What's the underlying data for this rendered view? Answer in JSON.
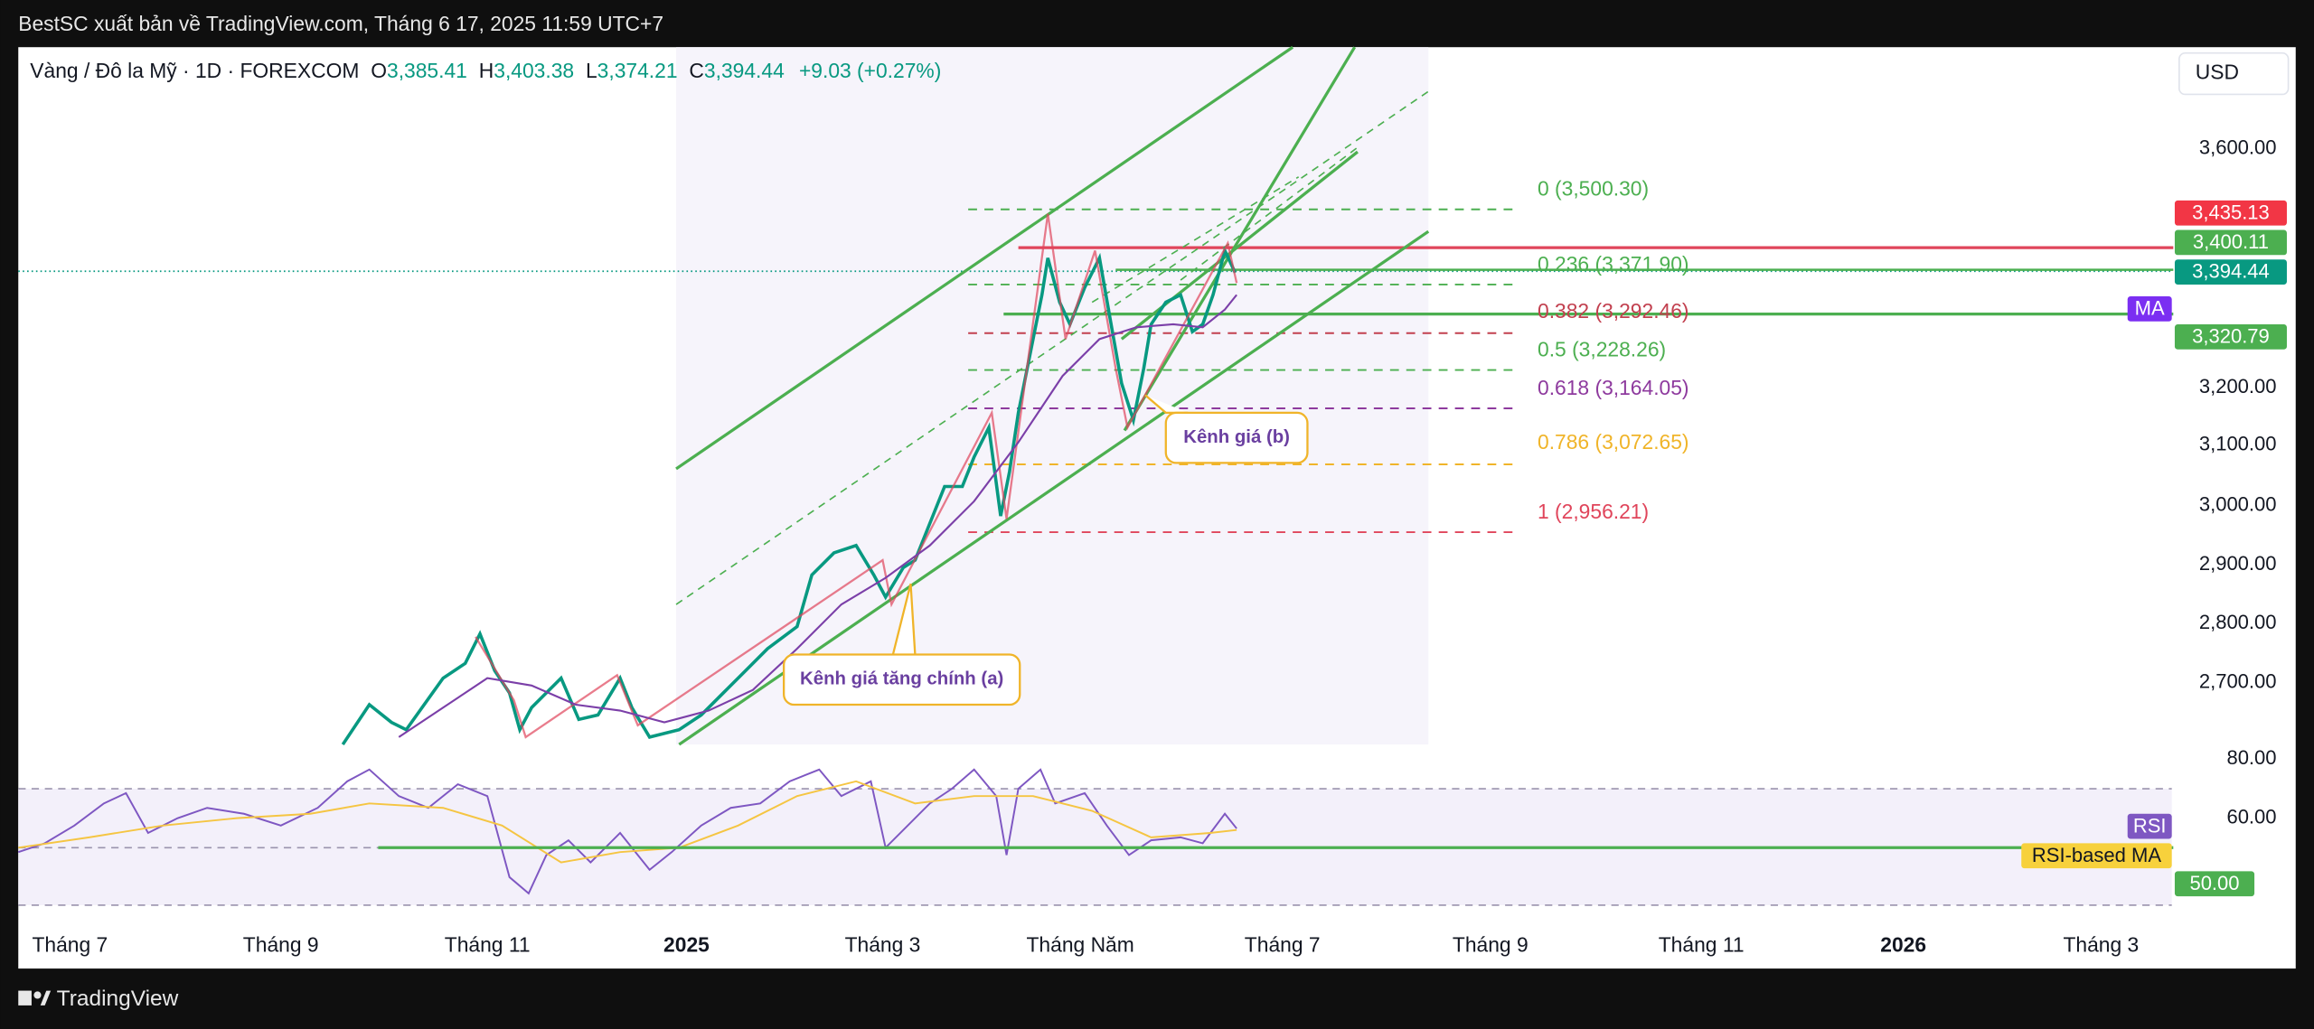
{
  "header": {
    "attribution": "BestSC xuất bản về TradingView.com, Tháng 6 17, 2025 11:59 UTC+7"
  },
  "symbol": {
    "name": "Vàng / Đô la Mỹ · 1D · FOREXCOM",
    "ohlc": [
      {
        "key": "O",
        "value": "3,385.41"
      },
      {
        "key": "H",
        "value": "3,403.38"
      },
      {
        "key": "L",
        "value": "3,374.21"
      },
      {
        "key": "C",
        "value": "3,394.44"
      }
    ],
    "change": "+9.03 (+0.27%)"
  },
  "currency": "USD",
  "price_axis": [
    "3,600.00",
    "3,200.00",
    "3,100.00",
    "3,000.00",
    "2,900.00",
    "2,800.00",
    "2,700.00"
  ],
  "price_badges": {
    "high_line": "3,435.13",
    "resistance": "3,400.11",
    "last": "3,394.44",
    "ma_label": "MA",
    "ma": "3,320.79"
  },
  "fib_levels": [
    "0 (3,500.30)",
    "0.236 (3,371.90)",
    "0.382 (3,292.46)",
    "0.5 (3,228.26)",
    "0.618 (3,164.05)",
    "0.786 (3,072.65)",
    "1 (2,956.21)"
  ],
  "annotations": {
    "channel_b": "Kênh giá (b)",
    "channel_a": "Kênh giá tăng chính (a)"
  },
  "rsi_axis": {
    "upper": "80.00",
    "mid": "60.00",
    "badge_label": "RSI",
    "ma_label": "RSI-based MA",
    "value": "50.00"
  },
  "time_axis": [
    "Tháng 7",
    "Tháng 9",
    "Tháng 11",
    "2025",
    "Tháng 3",
    "Tháng Năm",
    "Tháng 7",
    "Tháng 9",
    "Tháng 11",
    "2026",
    "Tháng 3"
  ],
  "footer": {
    "brand": "TradingView"
  }
}
